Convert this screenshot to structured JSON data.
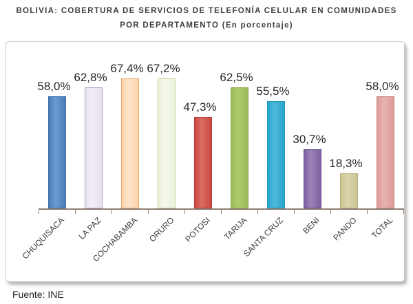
{
  "title": {
    "line1": "BOLIVIA: COBERTURA DE SERVICIOS DE TELEFONÍA CELULAR EN COMUNIDADES",
    "line2": "POR DEPARTAMENTO (En porcentaje)"
  },
  "source": "Fuente: INE",
  "chart_data": {
    "type": "bar",
    "title": "BOLIVIA: COBERTURA DE SERVICIOS DE TELEFONÍA CELULAR EN COMUNIDADES POR DEPARTAMENTO (En porcentaje)",
    "xlabel": "",
    "ylabel": "",
    "ylim": [
      0,
      80
    ],
    "grid": false,
    "legend": "none",
    "categories": [
      "CHUQUISACA",
      "LA PAZ",
      "COCHABAMBA",
      "ORURO",
      "POTOSI",
      "TARIJA",
      "SANTA CRUZ",
      "BENI",
      "PANDO",
      "TOTAL"
    ],
    "values": [
      58.0,
      62.8,
      67.4,
      67.2,
      47.3,
      62.5,
      55.5,
      30.7,
      18.3,
      58.0
    ],
    "value_labels": [
      "58,0%",
      "62,8%",
      "67,4%",
      "67,2%",
      "47,3%",
      "62,5%",
      "55,5%",
      "30,7%",
      "18,3%",
      "58,0%"
    ],
    "bar_colors": [
      {
        "fill": "#4A7EBB",
        "light": "#6C9BD0",
        "border": "#3D6EA8"
      },
      {
        "fill": "#E7E1EE",
        "light": "#F2EDF7",
        "border": "#B3A2C7"
      },
      {
        "fill": "#FBD3AE",
        "light": "#FDE4CA",
        "border": "#F0A868"
      },
      {
        "fill": "#EBF1DD",
        "light": "#F4F8EA",
        "border": "#C2D69B"
      },
      {
        "fill": "#CB4843",
        "light": "#DA6C62",
        "border": "#B03A36"
      },
      {
        "fill": "#9CBB58",
        "light": "#AFCB6E",
        "border": "#89A84B"
      },
      {
        "fill": "#27A7CC",
        "light": "#4FB9D9",
        "border": "#1E93B5"
      },
      {
        "fill": "#7D60A0",
        "light": "#9D83B9",
        "border": "#6A4F8C"
      },
      {
        "fill": "#CBC492",
        "light": "#DAD4AA",
        "border": "#B5AD7C"
      },
      {
        "fill": "#DD9B98",
        "light": "#E7B3B0",
        "border": "#C98886"
      }
    ],
    "axis_color": "#8f7e74"
  }
}
